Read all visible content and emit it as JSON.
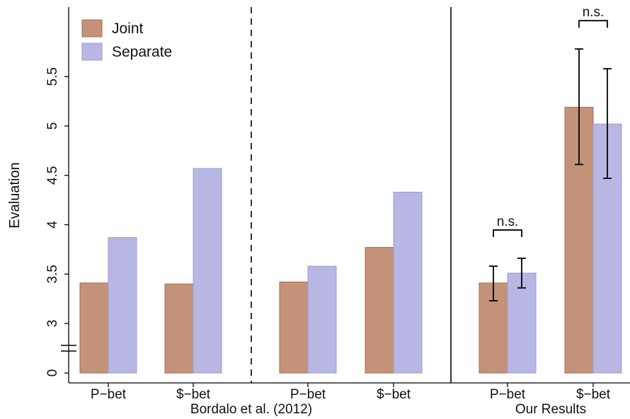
{
  "chart_data": {
    "type": "bar",
    "ylabel": "Evaluation",
    "y_axis_break": true,
    "y_ticks": [
      "0",
      "3",
      "3.5",
      "4",
      "4.5",
      "5",
      "5.5"
    ],
    "legend": {
      "placement": "top-left",
      "entries": [
        {
          "name": "Joint",
          "color": "#c49279"
        },
        {
          "name": "Separate",
          "color": "#b8b6e3"
        }
      ]
    },
    "colors": {
      "joint": "#c49279",
      "joint_edge": "#a86a52",
      "separate": "#b8b6e3",
      "separate_edge": "#9f9bd6"
    },
    "groups": [
      {
        "label": "Bordalo et al. (2012)",
        "panels": [
          {
            "categories": [
              "P−bet",
              "$−bet"
            ],
            "series": [
              {
                "name": "Joint",
                "values": [
                  3.41,
                  3.4
                ]
              },
              {
                "name": "Separate",
                "values": [
                  3.87,
                  4.57
                ]
              }
            ]
          },
          {
            "categories": [
              "P−bet",
              "$−bet"
            ],
            "series": [
              {
                "name": "Joint",
                "values": [
                  3.42,
                  3.77
                ]
              },
              {
                "name": "Separate",
                "values": [
                  3.58,
                  4.33
                ]
              }
            ]
          }
        ]
      },
      {
        "label": "Our Results",
        "panels": [
          {
            "categories": [
              "P−bet",
              "$−bet"
            ],
            "series": [
              {
                "name": "Joint",
                "values": [
                  3.41,
                  5.19
                ],
                "ci_low": [
                  3.23,
                  4.61
                ],
                "ci_high": [
                  3.58,
                  5.78
                ]
              },
              {
                "name": "Separate",
                "values": [
                  3.51,
                  5.02
                ],
                "ci_low": [
                  3.36,
                  4.47
                ],
                "ci_high": [
                  3.66,
                  5.58
                ]
              }
            ],
            "annotations": [
              "n.s.",
              "n.s."
            ]
          }
        ]
      }
    ]
  }
}
